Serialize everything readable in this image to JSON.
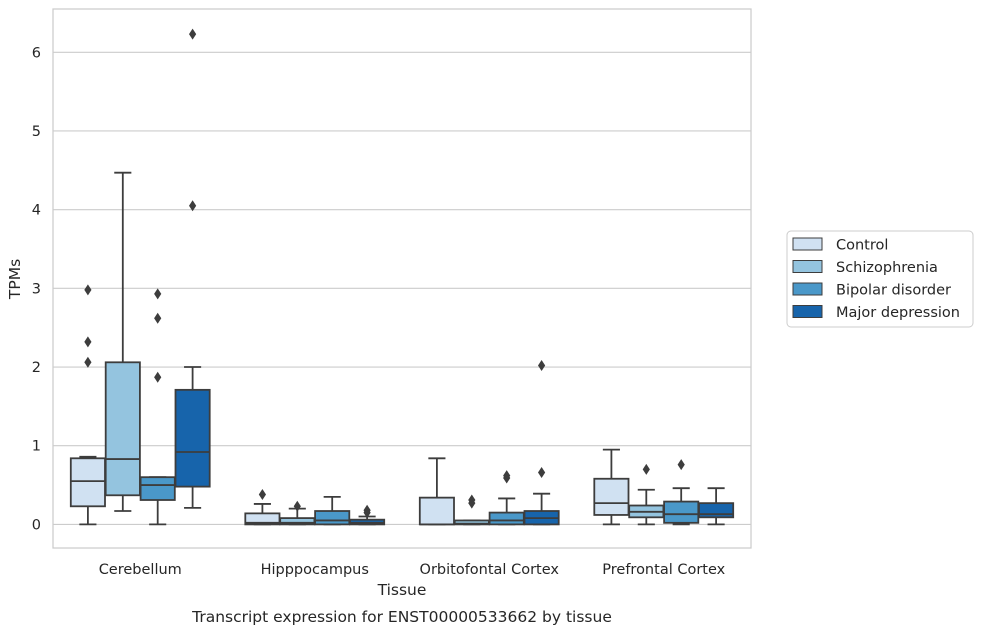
{
  "chart_data": {
    "type": "boxplot",
    "title": "",
    "caption": "Transcript expression for ENST00000533662 by tissue",
    "xlabel": "Tissue",
    "ylabel": "TPMs",
    "ylim": [
      -0.3,
      6.55
    ],
    "yticks": [
      0,
      1,
      2,
      3,
      4,
      5,
      6
    ],
    "grid": "horizontal",
    "legend_position": "right",
    "categories": [
      "Cerebellum",
      "Hipppocampus",
      "Orbitofontal Cortex",
      "Prefrontal Cortex"
    ],
    "series": [
      {
        "name": "Control",
        "color": "#d0e1f2",
        "boxes": [
          {
            "whislo": 0.0,
            "q1": 0.23,
            "med": 0.55,
            "q3": 0.84,
            "whishi": 0.86,
            "fliers": [
              2.06,
              2.32,
              2.98
            ]
          },
          {
            "whislo": 0.0,
            "q1": 0.0,
            "med": 0.02,
            "q3": 0.14,
            "whishi": 0.26,
            "fliers": [
              0.38
            ]
          },
          {
            "whislo": 0.0,
            "q1": 0.0,
            "med": 0.0,
            "q3": 0.34,
            "whishi": 0.84,
            "fliers": []
          },
          {
            "whislo": 0.0,
            "q1": 0.12,
            "med": 0.27,
            "q3": 0.58,
            "whishi": 0.95,
            "fliers": []
          }
        ]
      },
      {
        "name": "Schizophrenia",
        "color": "#94c4df",
        "boxes": [
          {
            "whislo": 0.17,
            "q1": 0.37,
            "med": 0.83,
            "q3": 2.06,
            "whishi": 4.47,
            "fliers": []
          },
          {
            "whislo": 0.0,
            "q1": 0.0,
            "med": 0.02,
            "q3": 0.08,
            "whishi": 0.2,
            "fliers": [
              0.23
            ]
          },
          {
            "whislo": 0.0,
            "q1": 0.0,
            "med": 0.01,
            "q3": 0.05,
            "whishi": 0.05,
            "fliers": [
              0.27,
              0.31
            ]
          },
          {
            "whislo": 0.0,
            "q1": 0.09,
            "med": 0.16,
            "q3": 0.24,
            "whishi": 0.44,
            "fliers": [
              0.7
            ]
          }
        ]
      },
      {
        "name": "Bipolar disorder",
        "color": "#4a98c9",
        "boxes": [
          {
            "whislo": 0.0,
            "q1": 0.31,
            "med": 0.5,
            "q3": 0.6,
            "whishi": 0.6,
            "fliers": [
              1.87,
              2.62,
              2.93
            ]
          },
          {
            "whislo": 0.0,
            "q1": 0.0,
            "med": 0.05,
            "q3": 0.17,
            "whishi": 0.35,
            "fliers": []
          },
          {
            "whislo": 0.0,
            "q1": 0.0,
            "med": 0.05,
            "q3": 0.15,
            "whishi": 0.33,
            "fliers": [
              0.59,
              0.62
            ]
          },
          {
            "whislo": 0.0,
            "q1": 0.02,
            "med": 0.13,
            "q3": 0.29,
            "whishi": 0.46,
            "fliers": [
              0.76
            ]
          }
        ]
      },
      {
        "name": "Major depression",
        "color": "#1764ab",
        "boxes": [
          {
            "whislo": 0.21,
            "q1": 0.48,
            "med": 0.92,
            "q3": 1.71,
            "whishi": 2.0,
            "fliers": [
              4.05,
              6.23
            ]
          },
          {
            "whislo": 0.0,
            "q1": 0.0,
            "med": 0.02,
            "q3": 0.06,
            "whishi": 0.1,
            "fliers": [
              0.15,
              0.18
            ]
          },
          {
            "whislo": 0.0,
            "q1": 0.0,
            "med": 0.08,
            "q3": 0.17,
            "whishi": 0.39,
            "fliers": [
              0.66,
              2.02
            ]
          },
          {
            "whislo": 0.0,
            "q1": 0.09,
            "med": 0.13,
            "q3": 0.27,
            "whishi": 0.46,
            "fliers": []
          }
        ]
      }
    ]
  }
}
